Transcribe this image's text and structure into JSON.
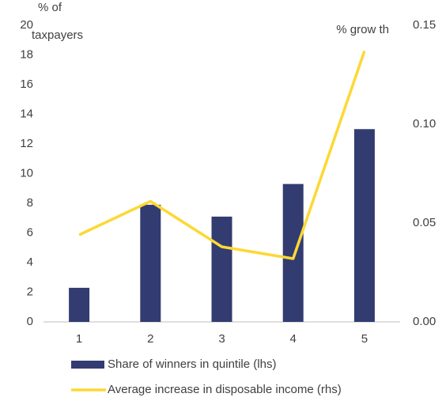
{
  "chart_data": {
    "type": "bar_line",
    "ylabel": [
      "% of",
      "taxpayers"
    ],
    "y2label": "% grow th",
    "categories": [
      "1",
      "2",
      "3",
      "4",
      "5"
    ],
    "series": [
      {
        "name": "Share of winners in quintile (lhs)",
        "type": "bar",
        "color": "#323c70",
        "values": [
          2.3,
          7.9,
          7.1,
          9.3,
          13.0
        ]
      },
      {
        "name": "Average increase in disposable income (rhs)",
        "type": "line",
        "axis": "y2",
        "color": "#fdd835",
        "values": [
          0.044,
          0.061,
          0.038,
          0.032,
          0.137
        ]
      }
    ],
    "ylim": [
      0,
      20
    ],
    "yticks": [
      0,
      2,
      4,
      6,
      8,
      10,
      12,
      14,
      16,
      18,
      20
    ],
    "y2lim": [
      0,
      0.15
    ],
    "y2ticks": [
      {
        "value": 0,
        "label": "0.00"
      },
      0.05,
      {
        "value": 0.1,
        "label": "0.10"
      },
      0.15
    ]
  }
}
